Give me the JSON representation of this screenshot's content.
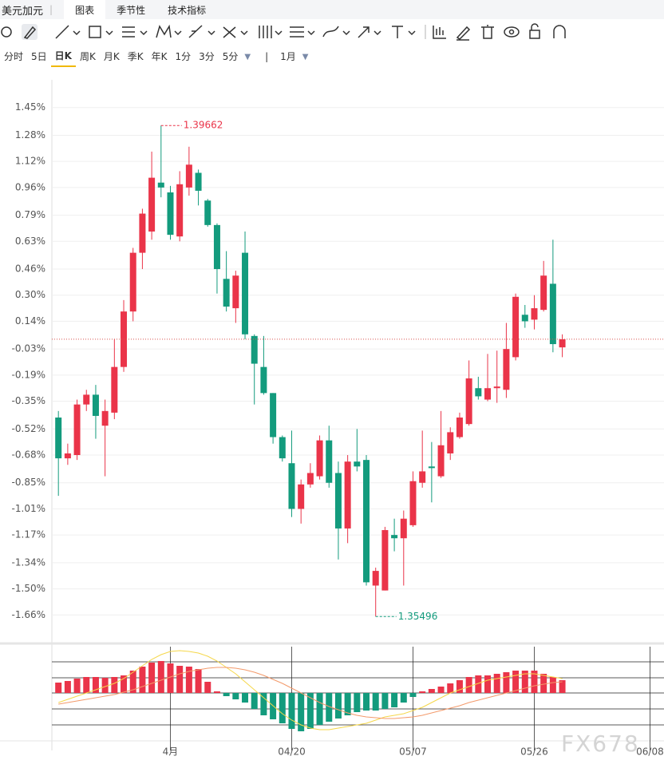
{
  "header": {
    "symbol": "美元加元",
    "tabs": [
      "图表",
      "季节性",
      "技术指标"
    ]
  },
  "periods": [
    "分时",
    "5日",
    "日K",
    "周K",
    "月K",
    "季K",
    "年K",
    "1分",
    "3分",
    "5分",
    "1月"
  ],
  "selected_period_index": 2,
  "watermark": "FX678",
  "chart_data": [
    {
      "type": "candlestick",
      "up_color": "#ea3449",
      "down_color": "#139b7d",
      "open": [
        -0.45,
        -0.7,
        -0.68,
        -0.37,
        -0.31,
        -0.5,
        -0.42,
        -0.14,
        0.2,
        0.56,
        0.69,
        0.99,
        0.93,
        0.66,
        0.96,
        1.05,
        0.88,
        0.73,
        0.4,
        0.22,
        0.56,
        0.05,
        -0.14,
        -0.3,
        -0.57,
        -0.73,
        -1.01,
        -0.86,
        -0.81,
        -0.59,
        -0.79,
        -1.13,
        -0.72,
        -0.71,
        -1.48,
        -1.51,
        -1.17,
        -1.19,
        -1.11,
        -0.85,
        -0.75,
        -0.81,
        -0.67,
        -0.57,
        -0.49,
        -0.27,
        -0.34,
        -0.27,
        -0.28,
        -0.08,
        0.18,
        0.15,
        0.21,
        0.37,
        -0.02
      ],
      "high": [
        -0.41,
        -0.61,
        -0.34,
        -0.28,
        -0.25,
        -0.34,
        0.03,
        0.27,
        0.59,
        0.83,
        1.18,
        1.34,
        0.97,
        1.06,
        1.21,
        1.07,
        0.89,
        0.74,
        0.57,
        0.45,
        0.69,
        0.06,
        0.05,
        -0.3,
        -0.56,
        -0.53,
        -0.83,
        -0.73,
        -0.56,
        -0.5,
        -0.72,
        -0.68,
        -0.52,
        -0.68,
        -1.37,
        -1.12,
        -1.07,
        -1.02,
        -0.78,
        -0.53,
        -0.6,
        -0.41,
        -0.51,
        -0.42,
        -0.1,
        -0.2,
        -0.06,
        -0.04,
        0.13,
        0.31,
        0.24,
        0.3,
        0.51,
        0.64,
        0.06
      ],
      "low": [
        -0.93,
        -0.74,
        -0.71,
        -0.41,
        -0.58,
        -0.81,
        -0.46,
        -0.17,
        0.14,
        0.46,
        0.64,
        0.9,
        0.64,
        0.63,
        0.91,
        0.85,
        0.72,
        0.31,
        0.2,
        0.13,
        0.03,
        -0.37,
        -0.31,
        -0.61,
        -0.72,
        -1.06,
        -1.1,
        -0.88,
        -0.83,
        -0.88,
        -1.32,
        -1.22,
        -0.78,
        -1.48,
        -1.67,
        -1.51,
        -1.27,
        -1.48,
        -1.12,
        -0.88,
        -0.97,
        -0.82,
        -0.71,
        -0.58,
        -0.5,
        -0.34,
        -0.35,
        -0.36,
        -0.33,
        -0.1,
        0.1,
        0.09,
        0.2,
        -0.05,
        -0.08
      ],
      "close": [
        -0.7,
        -0.67,
        -0.37,
        -0.31,
        -0.44,
        -0.41,
        -0.14,
        0.2,
        0.56,
        0.8,
        1.02,
        0.96,
        0.67,
        0.98,
        1.1,
        0.94,
        0.73,
        0.46,
        0.23,
        0.42,
        0.06,
        -0.12,
        -0.3,
        -0.57,
        -0.7,
        -1.01,
        -0.86,
        -0.79,
        -0.59,
        -0.85,
        -1.13,
        -0.72,
        -0.75,
        -1.46,
        -1.39,
        -1.14,
        -1.19,
        -1.07,
        -0.84,
        -0.78,
        -0.76,
        -0.62,
        -0.54,
        -0.45,
        -0.21,
        -0.32,
        -0.27,
        -0.26,
        -0.03,
        0.29,
        0.14,
        0.22,
        0.42,
        0.0,
        0.03
      ],
      "ylim": [
        -1.83,
        1.62
      ],
      "yticks": [
        {
          "value": 1.45,
          "label": "1.45%"
        },
        {
          "value": 1.28,
          "label": "1.28%"
        },
        {
          "value": 1.12,
          "label": "1.12%"
        },
        {
          "value": 0.96,
          "label": "0.96%"
        },
        {
          "value": 0.79,
          "label": "0.79%"
        },
        {
          "value": 0.63,
          "label": "0.63%"
        },
        {
          "value": 0.46,
          "label": "0.46%"
        },
        {
          "value": 0.3,
          "label": "0.30%"
        },
        {
          "value": 0.14,
          "label": "0.14%"
        },
        {
          "value": -0.03,
          "label": "-0.03%"
        },
        {
          "value": -0.19,
          "label": "-0.19%"
        },
        {
          "value": -0.35,
          "label": "-0.35%"
        },
        {
          "value": -0.52,
          "label": "-0.52%"
        },
        {
          "value": -0.68,
          "label": "-0.68%"
        },
        {
          "value": -0.85,
          "label": "-0.85%"
        },
        {
          "value": -1.01,
          "label": "-1.01%"
        },
        {
          "value": -1.17,
          "label": "-1.17%"
        },
        {
          "value": -1.34,
          "label": "-1.34%"
        },
        {
          "value": -1.5,
          "label": "-1.50%"
        },
        {
          "value": -1.66,
          "label": "-1.66%"
        }
      ],
      "xlim": [
        -0.7,
        64.9
      ],
      "xticks": [
        {
          "value": 12,
          "label": "4月"
        },
        {
          "value": 25,
          "label": "04/20"
        },
        {
          "value": 38,
          "label": "05/07"
        },
        {
          "value": 51,
          "label": "05/26"
        },
        {
          "value": 63.4,
          "label": "06/08"
        }
      ],
      "high_label": "1.39662",
      "low_label": "1.35496"
    },
    {
      "type": "macd",
      "up_color": "#ea3449",
      "down_color": "#139b7d",
      "dif_color": "#f5d74a",
      "dea_color": "#f39a6b",
      "histogram": [
        13,
        15,
        18,
        20,
        20,
        19,
        20,
        22,
        28,
        33,
        38,
        40,
        37,
        34,
        33,
        30,
        14,
        2,
        -4,
        -8,
        -12,
        -20,
        -28,
        -33,
        -38,
        -45,
        -48,
        -45,
        -40,
        -36,
        -32,
        -28,
        -24,
        -22,
        -22,
        -20,
        -18,
        -12,
        -5,
        2,
        5,
        8,
        12,
        16,
        20,
        22,
        22,
        24,
        26,
        28,
        28,
        28,
        24,
        20,
        16
      ],
      "dif": [
        -12,
        -8,
        -4,
        0,
        4,
        8,
        12,
        18,
        26,
        34,
        42,
        48,
        52,
        53,
        52,
        50,
        46,
        40,
        32,
        24,
        14,
        4,
        -6,
        -16,
        -26,
        -34,
        -40,
        -44,
        -46,
        -46,
        -44,
        -42,
        -40,
        -38,
        -34,
        -30,
        -28,
        -26,
        -22,
        -18,
        -12,
        -6,
        0,
        4,
        8,
        12,
        16,
        18,
        20,
        22,
        24,
        24,
        22,
        20,
        18
      ],
      "dea": [
        -14,
        -12,
        -10,
        -8,
        -6,
        -4,
        -2,
        1,
        4,
        8,
        12,
        16,
        20,
        24,
        27,
        29,
        31,
        32,
        32,
        31,
        29,
        26,
        22,
        17,
        12,
        6,
        0,
        -6,
        -12,
        -17,
        -21,
        -25,
        -28,
        -30,
        -31,
        -32,
        -32,
        -31,
        -30,
        -28,
        -25,
        -22,
        -19,
        -16,
        -12,
        -9,
        -6,
        -3,
        0,
        3,
        6,
        9,
        11,
        13,
        14
      ],
      "ylim": [
        -57,
        60
      ],
      "xlim": [
        -0.7,
        64.9
      ]
    }
  ]
}
